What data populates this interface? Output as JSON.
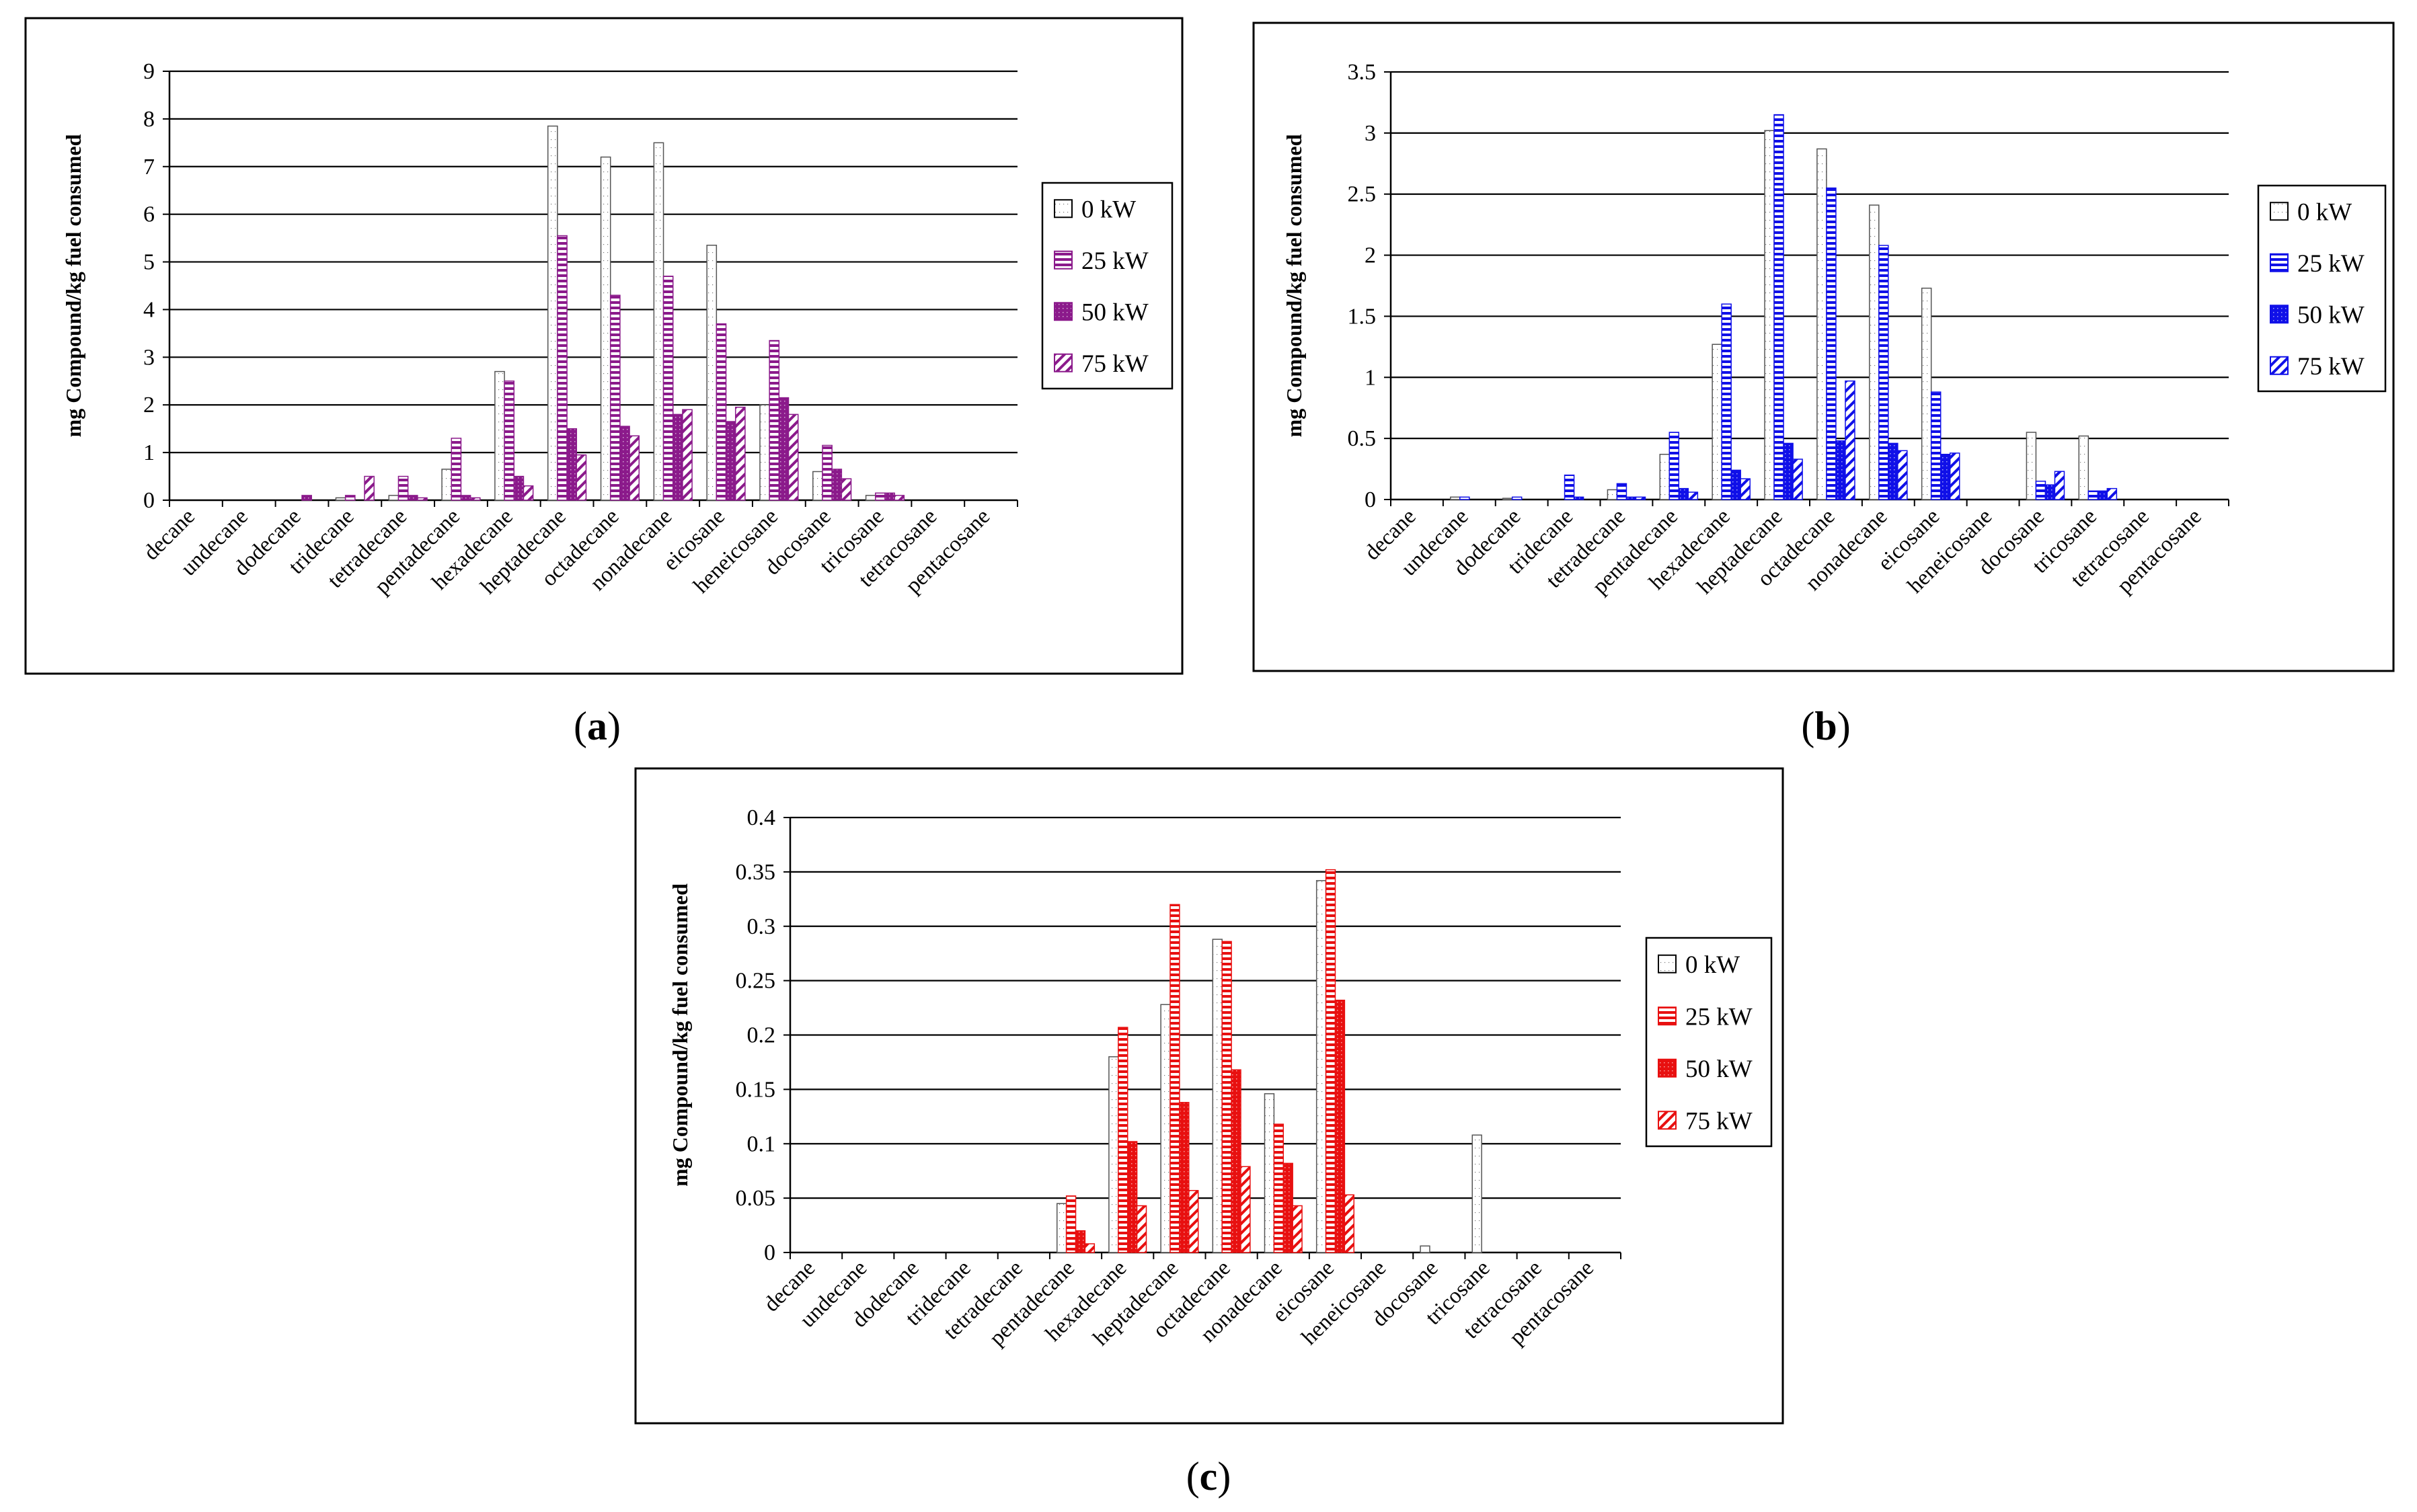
{
  "chart_data": [
    {
      "type": "bar",
      "panel": "a",
      "caption": "(a)",
      "caption_letter": "a",
      "ylabel": "mg Compound/kg fuel consumed",
      "ylim": [
        0,
        9
      ],
      "ytick_labels": [
        "0",
        "1",
        "2",
        "3",
        "4",
        "5",
        "6",
        "7",
        "8",
        "9"
      ],
      "categories": [
        "decane",
        "undecane",
        "dodecane",
        "tridecane",
        "tetradecane",
        "pentadecane",
        "hexadecane",
        "heptadecane",
        "octadecane",
        "nonadecane",
        "eicosane",
        "heneicosane",
        "docosane",
        "tricosane",
        "tetracosane",
        "pentacosane"
      ],
      "series": [
        {
          "name": "0 kW",
          "values": [
            0,
            0,
            0,
            0.05,
            0.1,
            0.65,
            2.7,
            7.85,
            7.2,
            7.5,
            5.35,
            2.0,
            0.6,
            0.1,
            0,
            0
          ]
        },
        {
          "name": "25 kW",
          "values": [
            0,
            0,
            0,
            0.1,
            0.5,
            1.3,
            2.5,
            5.55,
            4.3,
            4.7,
            3.7,
            3.35,
            1.15,
            0.15,
            0,
            0
          ]
        },
        {
          "name": "50 kW",
          "values": [
            0,
            0,
            0.1,
            0,
            0.1,
            0.1,
            0.5,
            1.5,
            1.55,
            1.8,
            1.65,
            2.15,
            0.65,
            0.15,
            0,
            0
          ]
        },
        {
          "name": "75 kW",
          "values": [
            0,
            0,
            0,
            0.5,
            0.05,
            0.05,
            0.3,
            0.95,
            1.35,
            1.9,
            1.95,
            1.8,
            0.45,
            0.1,
            0,
            0
          ]
        }
      ],
      "legend_position": "right",
      "accent_color": "#8b1a8b"
    },
    {
      "type": "bar",
      "panel": "b",
      "caption": "(b)",
      "caption_letter": "b",
      "ylabel": "mg Compound/kg fuel consumed",
      "ylim": [
        0,
        3.5
      ],
      "ytick_labels": [
        "0",
        "0.5",
        "1",
        "1.5",
        "2",
        "2.5",
        "3",
        "3.5"
      ],
      "categories": [
        "decane",
        "undecane",
        "dodecane",
        "tridecane",
        "tetradecane",
        "pentadecane",
        "hexadecane",
        "heptadecane",
        "octadecane",
        "nonadecane",
        "eicosane",
        "heneicosane",
        "docosane",
        "tricosane",
        "tetracosane",
        "pentacosane"
      ],
      "series": [
        {
          "name": "0 kW",
          "values": [
            0,
            0.02,
            0.01,
            0,
            0.08,
            0.37,
            1.27,
            3.02,
            2.87,
            2.41,
            1.73,
            0,
            0.55,
            0.52,
            0,
            0
          ]
        },
        {
          "name": "25 kW",
          "values": [
            0,
            0.02,
            0.02,
            0.2,
            0.13,
            0.55,
            1.6,
            3.15,
            2.55,
            2.08,
            0.88,
            0,
            0.15,
            0.07,
            0,
            0
          ]
        },
        {
          "name": "50 kW",
          "values": [
            0,
            0,
            0,
            0.02,
            0.02,
            0.09,
            0.24,
            0.46,
            0.48,
            0.46,
            0.37,
            0,
            0.12,
            0.07,
            0,
            0
          ]
        },
        {
          "name": "75 kW",
          "values": [
            0,
            0,
            0,
            0,
            0.02,
            0.06,
            0.17,
            0.33,
            0.97,
            0.4,
            0.38,
            0,
            0.23,
            0.09,
            0,
            0
          ]
        }
      ],
      "legend_position": "right",
      "accent_color": "#1010e8"
    },
    {
      "type": "bar",
      "panel": "c",
      "caption": "(c)",
      "caption_letter": "c",
      "ylabel": "mg Compound/kg fuel consumed",
      "ylim": [
        0,
        0.4
      ],
      "ytick_labels": [
        "0",
        "0.05",
        "0.1",
        "0.15",
        "0.2",
        "0.25",
        "0.3",
        "0.35",
        "0.4"
      ],
      "categories": [
        "decane",
        "undecane",
        "dodecane",
        "tridecane",
        "tetradecane",
        "pentadecane",
        "hexadecane",
        "heptadecane",
        "octadecane",
        "nonadecane",
        "eicosane",
        "heneicosane",
        "docosane",
        "tricosane",
        "tetracosane",
        "pentacosane"
      ],
      "series": [
        {
          "name": "0 kW",
          "values": [
            0,
            0,
            0,
            0,
            0,
            0.045,
            0.18,
            0.228,
            0.288,
            0.146,
            0.342,
            0,
            0.006,
            0.108,
            0,
            0
          ]
        },
        {
          "name": "25 kW",
          "values": [
            0,
            0,
            0,
            0,
            0,
            0.052,
            0.207,
            0.32,
            0.286,
            0.118,
            0.352,
            0,
            0,
            0,
            0,
            0
          ]
        },
        {
          "name": "50 kW",
          "values": [
            0,
            0,
            0,
            0,
            0,
            0.02,
            0.102,
            0.138,
            0.168,
            0.082,
            0.232,
            0,
            0,
            0,
            0,
            0
          ]
        },
        {
          "name": "75 kW",
          "values": [
            0,
            0,
            0,
            0,
            0,
            0.008,
            0.043,
            0.057,
            0.079,
            0.043,
            0.053,
            0,
            0,
            0,
            0,
            0
          ]
        }
      ],
      "legend_position": "right",
      "accent_color": "#e81010"
    }
  ]
}
